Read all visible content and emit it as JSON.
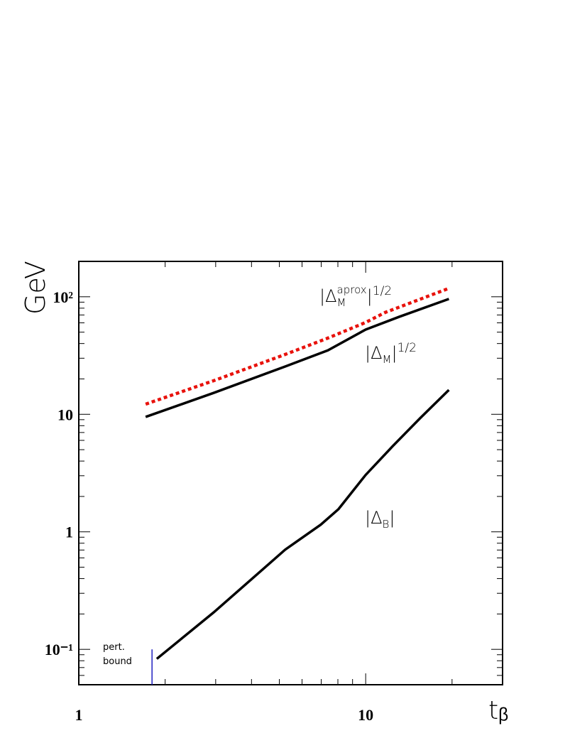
{
  "chart_data": {
    "type": "line",
    "x_label": "tᵦ",
    "y_label": "GeV",
    "log_x": true,
    "log_y": true,
    "xlim": [
      1,
      30
    ],
    "ylim": [
      0.05,
      200
    ],
    "xticks": [
      1,
      10
    ],
    "yticks": [
      {
        "value": 0.1,
        "label": "10⁻¹"
      },
      1,
      10,
      {
        "value": 100,
        "label": "10²"
      }
    ],
    "series": [
      {
        "label": {
          "a": "|Δ",
          "sub": "M",
          "sup": "aprox",
          "b": "|",
          "pow": "1/2"
        },
        "color": "#e8120c",
        "style": "dotted",
        "x": [
          1.71,
          2.95,
          5.24,
          7.38,
          10,
          11.7,
          19.5
        ],
        "values": [
          12.2,
          19.3,
          32.3,
          44.5,
          60.5,
          73.6,
          118
        ]
      },
      {
        "label": {
          "a": "|Δ",
          "sub": "M",
          "b": "|",
          "pow": "1/2"
        },
        "color": "#000000",
        "style": "solid",
        "x": [
          1.71,
          2.95,
          5.24,
          7.38,
          10,
          13.1,
          19.5
        ],
        "values": [
          9.5,
          15.2,
          25.5,
          35,
          52.6,
          67.6,
          95.8
        ]
      },
      {
        "label": {
          "a": "|Δ",
          "sub": "B",
          "b": "|"
        },
        "color": "#000000",
        "style": "solid",
        "x": [
          1.87,
          2.95,
          5.24,
          6.97,
          8.04,
          10,
          12.4,
          15.5,
          19.5
        ],
        "values": [
          0.083,
          0.206,
          0.705,
          1.15,
          1.56,
          3.05,
          5.33,
          9.3,
          16.1
        ]
      }
    ],
    "marker": {
      "x": 1.8,
      "top": 0.1,
      "color": "#2020c0",
      "label": [
        "pert.",
        "bound"
      ]
    }
  }
}
